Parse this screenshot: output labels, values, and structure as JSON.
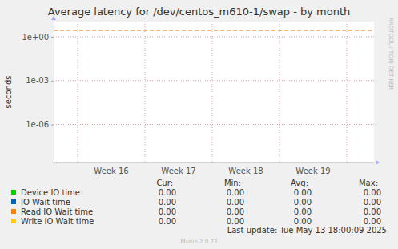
{
  "chart_data": {
    "type": "line",
    "title": "Average latency for /dev/centos_m610-1/swap - by month",
    "y_label": "seconds",
    "categories": [
      "Week 16",
      "Week 17",
      "Week 18",
      "Week 19"
    ],
    "log": "y",
    "ylim": [
      2.5e-09,
      11
    ],
    "yticks": [
      {
        "value": 1e-06,
        "label": "1e-06"
      },
      {
        "value": 0.001,
        "label": "1e-03"
      },
      {
        "value": 1,
        "label": "1e+00"
      }
    ],
    "grid": true,
    "hlines": [
      {
        "value": 2.7,
        "color": "#ff8000",
        "line_style": "dashed"
      }
    ],
    "legend_columns": [
      "Cur:",
      "Min:",
      "Avg:",
      "Max:"
    ],
    "series": [
      {
        "name": "Device IO time",
        "color": "#00cc00",
        "cur": "0.00",
        "min": "0.00",
        "avg": "0.00",
        "max": "0.00"
      },
      {
        "name": "IO Wait time",
        "color": "#0066b3",
        "cur": "0.00",
        "min": "0.00",
        "avg": "0.00",
        "max": "0.00"
      },
      {
        "name": "Read IO Wait time",
        "color": "#ff8000",
        "cur": "0.00",
        "min": "0.00",
        "avg": "0.00",
        "max": "0.00"
      },
      {
        "name": "Write IO Wait time",
        "color": "#ffcc00",
        "cur": "0.00",
        "min": "0.00",
        "avg": "0.00",
        "max": "0.00"
      }
    ],
    "last_update": "Last update: Tue May 13 18:00:09 2025",
    "footer": "Munin 2.0.73",
    "watermark": "RRDTOOL / TOBI OETIKER"
  }
}
